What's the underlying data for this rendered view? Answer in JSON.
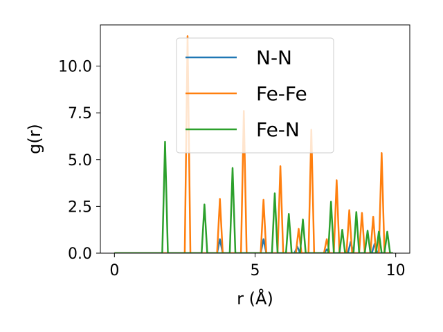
{
  "chart_data": {
    "type": "line",
    "xlabel": "r (Å)",
    "ylabel": "g(r)",
    "xlim": [
      -0.5,
      10.5
    ],
    "ylim": [
      0,
      12.2
    ],
    "xticks": [
      0,
      5,
      10
    ],
    "xtick_labels": [
      "0",
      "5",
      "10"
    ],
    "yticks": [
      0,
      2.5,
      5,
      7.5,
      10
    ],
    "ytick_labels": [
      "0.0",
      "2.5",
      "5.0",
      "7.5",
      "10.0"
    ],
    "grid": false,
    "legend_position": "top-center",
    "series": [
      {
        "name": "N-N",
        "color": "#1f77b4",
        "x": [
          0,
          3.65,
          3.75,
          3.85,
          5.2,
          5.3,
          5.4,
          6.4,
          6.5,
          6.6,
          7.45,
          7.55,
          7.65,
          8.3,
          8.4,
          8.5,
          9.15,
          9.25,
          9.35,
          9.9
        ],
        "y": [
          0,
          0,
          0.75,
          0,
          0,
          0.75,
          0,
          0,
          0.35,
          0,
          0,
          0.2,
          0,
          0,
          0.6,
          0,
          0,
          0.5,
          0,
          0
        ]
      },
      {
        "name": "Fe-Fe",
        "color": "#ff7f0e",
        "x": [
          0,
          2.5,
          2.6,
          2.7,
          3.65,
          3.75,
          3.85,
          4.5,
          4.6,
          4.7,
          5.2,
          5.3,
          5.4,
          5.8,
          5.9,
          6.0,
          6.45,
          6.55,
          6.65,
          6.9,
          7.0,
          7.1,
          7.45,
          7.55,
          7.65,
          7.8,
          7.9,
          8.0,
          8.25,
          8.35,
          8.45,
          8.7,
          8.8,
          8.9,
          9.1,
          9.2,
          9.3,
          9.4,
          9.5,
          9.6,
          9.9
        ],
        "y": [
          0,
          0,
          11.6,
          0,
          0,
          2.9,
          0,
          0,
          7.6,
          0,
          0,
          2.85,
          0,
          0,
          4.65,
          0,
          0,
          1.3,
          0,
          0,
          6.6,
          0,
          0,
          0.75,
          0,
          0,
          3.9,
          0,
          0,
          2.3,
          0,
          0,
          2.15,
          0,
          0,
          1.95,
          0,
          0,
          5.35,
          0,
          0
        ]
      },
      {
        "name": "Fe-N",
        "color": "#2ca02c",
        "x": [
          0,
          1.7,
          1.8,
          1.9,
          3.1,
          3.2,
          3.3,
          4.1,
          4.2,
          4.3,
          5.6,
          5.7,
          5.8,
          6.1,
          6.2,
          6.3,
          6.6,
          6.7,
          6.8,
          7.6,
          7.7,
          7.8,
          8.0,
          8.1,
          8.2,
          8.5,
          8.6,
          8.7,
          8.9,
          9.0,
          9.1,
          9.3,
          9.4,
          9.5,
          9.6,
          9.7,
          9.8,
          9.9
        ],
        "y": [
          0,
          0,
          5.95,
          0,
          0,
          2.6,
          0,
          0,
          4.55,
          0,
          0,
          3.2,
          0,
          0,
          2.1,
          0,
          0,
          1.8,
          0,
          0,
          2.75,
          0,
          0,
          1.25,
          0,
          0,
          2.2,
          0,
          0,
          1.2,
          0,
          0,
          1.15,
          0,
          0,
          1.15,
          0,
          0
        ]
      }
    ]
  }
}
